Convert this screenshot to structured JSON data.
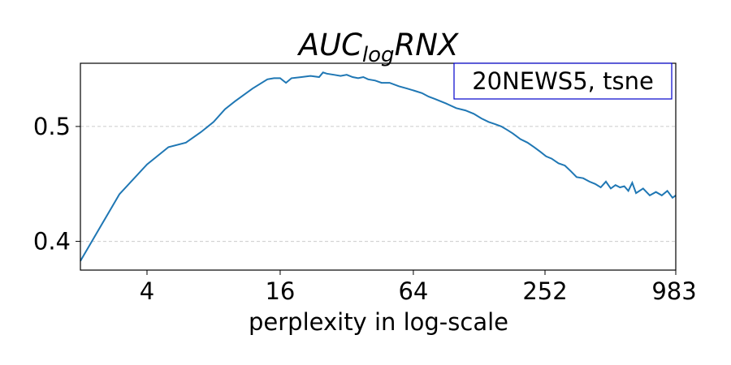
{
  "chart_data": {
    "type": "line",
    "title_main": "AUC",
    "title_sub": "log",
    "title_tail": "RNX",
    "xlabel": "perplexity in log-scale",
    "ylabel": "",
    "x_scale": "log",
    "xlim": [
      2,
      983
    ],
    "ylim": [
      0.375,
      0.555
    ],
    "x_ticks": [
      {
        "value": 4,
        "label": "4"
      },
      {
        "value": 16,
        "label": "16"
      },
      {
        "value": 64,
        "label": "64"
      },
      {
        "value": 252,
        "label": "252"
      },
      {
        "value": 983,
        "label": "983"
      }
    ],
    "y_ticks": [
      {
        "value": 0.4,
        "label": "0.4"
      },
      {
        "value": 0.5,
        "label": "0.5"
      }
    ],
    "grid": {
      "y": true,
      "x": false,
      "style": "dashed"
    },
    "legend_text": "20NEWS5, tsne",
    "legend_placement": "top-right",
    "colors": {
      "line": "#1f77b4",
      "legend_border": "#0000cc",
      "grid": "#cccccc"
    },
    "series": [
      {
        "x": [
          2,
          3,
          4,
          5,
          6,
          7,
          8,
          9,
          10,
          12,
          14,
          15,
          16,
          17,
          18,
          20,
          22,
          24,
          25,
          26,
          28,
          30,
          32,
          34,
          36,
          38,
          40,
          43,
          46,
          50,
          55,
          60,
          65,
          70,
          75,
          80,
          90,
          100,
          110,
          120,
          130,
          140,
          150,
          160,
          170,
          180,
          195,
          210,
          225,
          240,
          255,
          270,
          290,
          310,
          330,
          350,
          375,
          400,
          425,
          450,
          475,
          500,
          525,
          550,
          575,
          600,
          625,
          650,
          700,
          750,
          800,
          850,
          900,
          950,
          983
        ],
        "y": [
          0.383,
          0.441,
          0.467,
          0.482,
          0.486,
          0.495,
          0.504,
          0.515,
          0.522,
          0.533,
          0.541,
          0.542,
          0.542,
          0.538,
          0.542,
          0.543,
          0.544,
          0.543,
          0.547,
          0.546,
          0.545,
          0.544,
          0.545,
          0.543,
          0.542,
          0.543,
          0.541,
          0.54,
          0.538,
          0.538,
          0.535,
          0.533,
          0.531,
          0.529,
          0.526,
          0.524,
          0.52,
          0.516,
          0.514,
          0.511,
          0.507,
          0.504,
          0.502,
          0.5,
          0.497,
          0.494,
          0.489,
          0.486,
          0.482,
          0.478,
          0.474,
          0.472,
          0.468,
          0.466,
          0.461,
          0.456,
          0.455,
          0.452,
          0.45,
          0.447,
          0.452,
          0.446,
          0.449,
          0.447,
          0.448,
          0.444,
          0.451,
          0.442,
          0.446,
          0.44,
          0.443,
          0.44,
          0.444,
          0.438,
          0.44
        ]
      }
    ]
  }
}
